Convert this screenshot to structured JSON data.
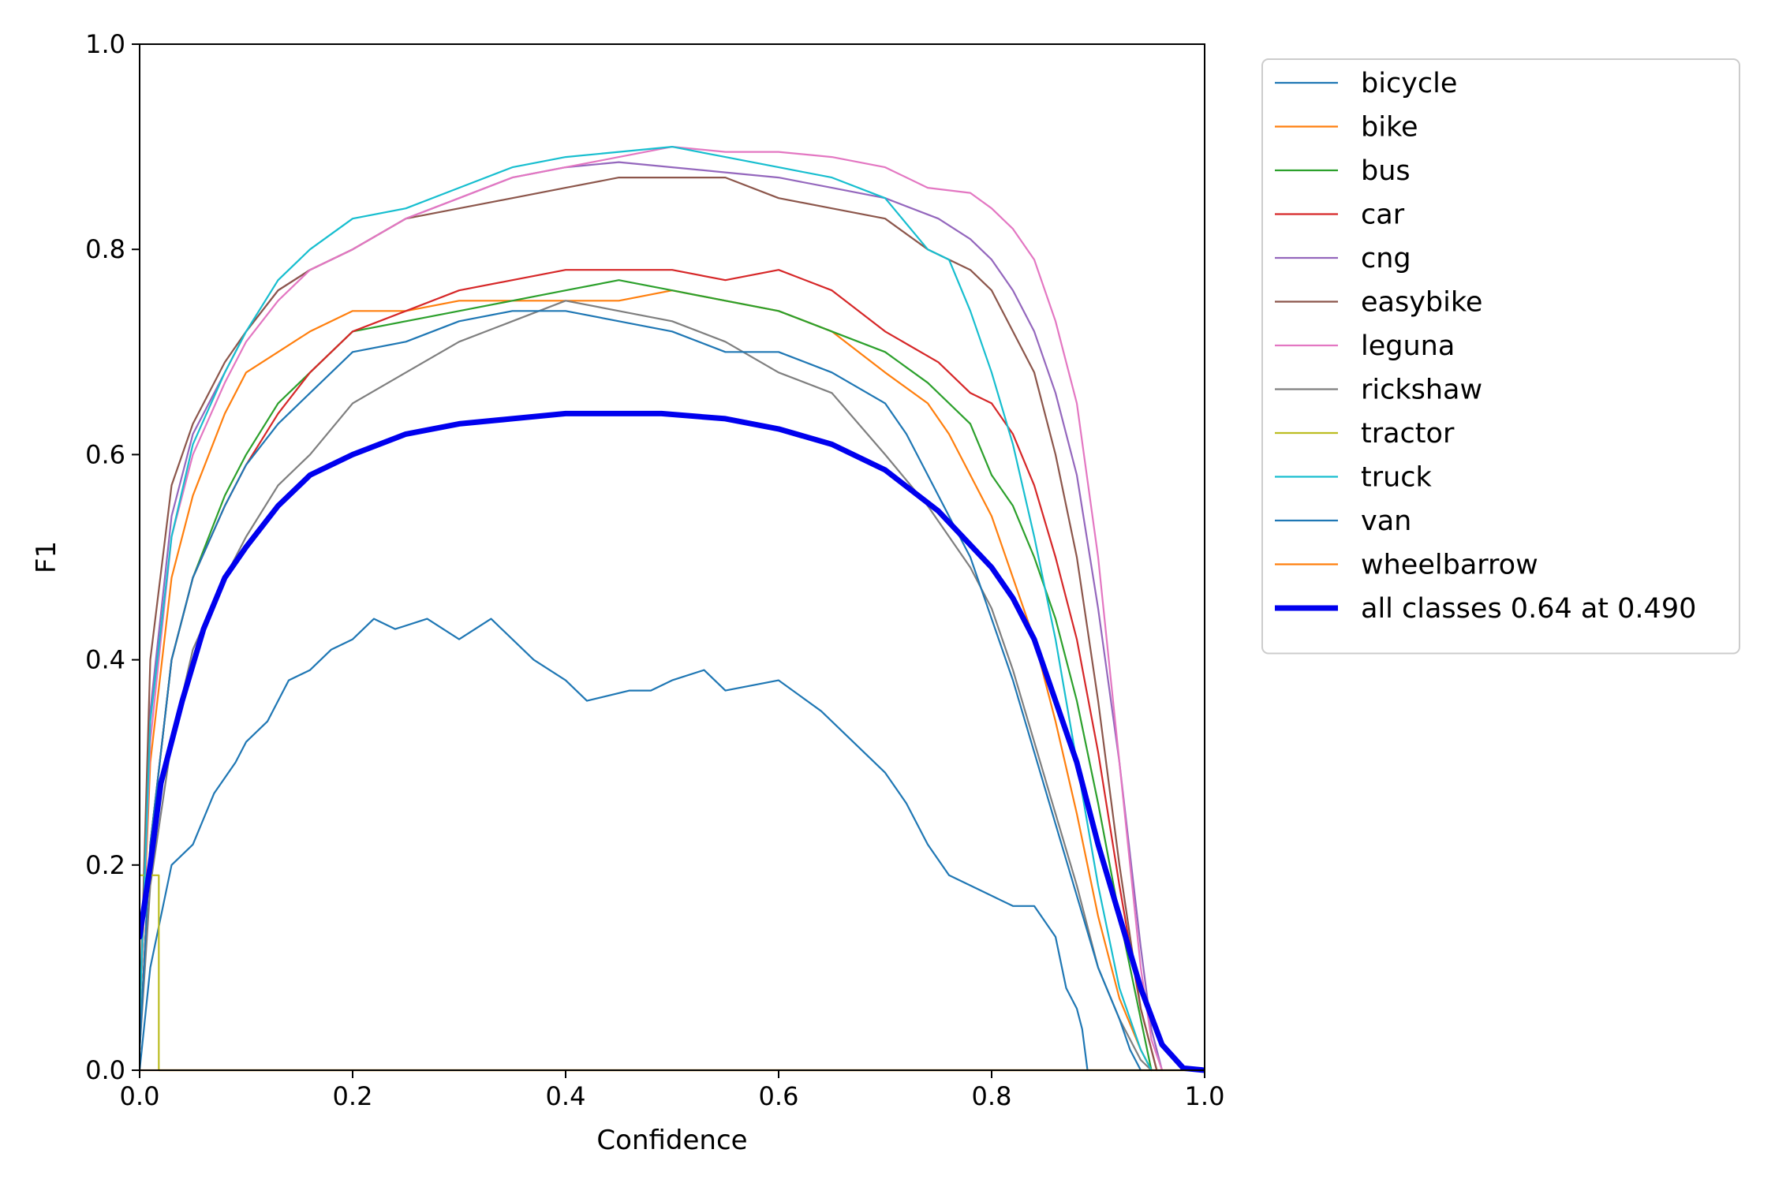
{
  "chart_data": {
    "type": "line",
    "title": "",
    "xlabel": "Confidence",
    "ylabel": "F1",
    "xlim": [
      0.0,
      1.0
    ],
    "ylim": [
      0.0,
      1.0
    ],
    "xticks": [
      "0.0",
      "0.2",
      "0.4",
      "0.6",
      "0.8",
      "1.0"
    ],
    "yticks": [
      "0.0",
      "0.2",
      "0.4",
      "0.6",
      "0.8",
      "1.0"
    ],
    "grid": false,
    "legend_position": "outside-top-right",
    "series": [
      {
        "name": "bicycle",
        "color": "#1f77b4",
        "width": 2.2,
        "x": [
          0.0,
          0.01,
          0.02,
          0.03,
          0.05,
          0.07,
          0.09,
          0.1,
          0.12,
          0.14,
          0.16,
          0.18,
          0.2,
          0.22,
          0.24,
          0.27,
          0.3,
          0.33,
          0.35,
          0.37,
          0.4,
          0.42,
          0.46,
          0.48,
          0.5,
          0.53,
          0.55,
          0.6,
          0.64,
          0.67,
          0.7,
          0.72,
          0.74,
          0.76,
          0.8,
          0.82,
          0.84,
          0.86,
          0.87,
          0.88,
          0.885,
          0.89
        ],
        "y": [
          0.0,
          0.1,
          0.15,
          0.2,
          0.22,
          0.27,
          0.3,
          0.32,
          0.34,
          0.38,
          0.39,
          0.41,
          0.42,
          0.44,
          0.43,
          0.44,
          0.42,
          0.44,
          0.42,
          0.4,
          0.38,
          0.36,
          0.37,
          0.37,
          0.38,
          0.39,
          0.37,
          0.38,
          0.35,
          0.32,
          0.29,
          0.26,
          0.22,
          0.19,
          0.17,
          0.16,
          0.16,
          0.13,
          0.08,
          0.06,
          0.04,
          0.0
        ]
      },
      {
        "name": "bike",
        "color": "#ff7f0e",
        "width": 2.2,
        "x": [
          0.0,
          0.01,
          0.03,
          0.05,
          0.08,
          0.1,
          0.13,
          0.16,
          0.2,
          0.25,
          0.3,
          0.35,
          0.4,
          0.45,
          0.5,
          0.55,
          0.6,
          0.65,
          0.7,
          0.74,
          0.76,
          0.78,
          0.8,
          0.82,
          0.84,
          0.86,
          0.88,
          0.9,
          0.92,
          0.94,
          0.95
        ],
        "y": [
          0.05,
          0.3,
          0.48,
          0.56,
          0.64,
          0.68,
          0.7,
          0.72,
          0.74,
          0.74,
          0.75,
          0.75,
          0.75,
          0.75,
          0.76,
          0.75,
          0.74,
          0.72,
          0.68,
          0.65,
          0.62,
          0.58,
          0.54,
          0.48,
          0.42,
          0.34,
          0.25,
          0.15,
          0.07,
          0.02,
          0.0
        ]
      },
      {
        "name": "bus",
        "color": "#2ca02c",
        "width": 2.2,
        "x": [
          0.0,
          0.01,
          0.03,
          0.05,
          0.08,
          0.1,
          0.13,
          0.16,
          0.2,
          0.25,
          0.3,
          0.35,
          0.4,
          0.45,
          0.5,
          0.55,
          0.6,
          0.65,
          0.7,
          0.74,
          0.78,
          0.8,
          0.82,
          0.84,
          0.86,
          0.88,
          0.9,
          0.92,
          0.94,
          0.95
        ],
        "y": [
          0.02,
          0.22,
          0.4,
          0.48,
          0.56,
          0.6,
          0.65,
          0.68,
          0.72,
          0.73,
          0.74,
          0.75,
          0.76,
          0.77,
          0.76,
          0.75,
          0.74,
          0.72,
          0.7,
          0.67,
          0.63,
          0.58,
          0.55,
          0.5,
          0.44,
          0.36,
          0.26,
          0.15,
          0.05,
          0.0
        ]
      },
      {
        "name": "car",
        "color": "#d62728",
        "width": 2.2,
        "x": [
          0.0,
          0.01,
          0.03,
          0.05,
          0.08,
          0.1,
          0.13,
          0.16,
          0.2,
          0.25,
          0.3,
          0.35,
          0.4,
          0.45,
          0.5,
          0.55,
          0.6,
          0.65,
          0.7,
          0.75,
          0.78,
          0.8,
          0.82,
          0.84,
          0.86,
          0.88,
          0.9,
          0.92,
          0.94,
          0.955
        ],
        "y": [
          0.02,
          0.22,
          0.4,
          0.48,
          0.55,
          0.59,
          0.64,
          0.68,
          0.72,
          0.74,
          0.76,
          0.77,
          0.78,
          0.78,
          0.78,
          0.77,
          0.78,
          0.76,
          0.72,
          0.69,
          0.66,
          0.65,
          0.62,
          0.57,
          0.5,
          0.42,
          0.31,
          0.18,
          0.06,
          0.0
        ]
      },
      {
        "name": "cng",
        "color": "#9467bd",
        "width": 2.2,
        "x": [
          0.0,
          0.01,
          0.03,
          0.05,
          0.08,
          0.1,
          0.13,
          0.16,
          0.2,
          0.25,
          0.3,
          0.35,
          0.4,
          0.45,
          0.5,
          0.55,
          0.6,
          0.65,
          0.7,
          0.75,
          0.78,
          0.8,
          0.82,
          0.84,
          0.86,
          0.88,
          0.9,
          0.92,
          0.94,
          0.95,
          0.96
        ],
        "y": [
          0.05,
          0.35,
          0.54,
          0.62,
          0.68,
          0.72,
          0.76,
          0.78,
          0.8,
          0.83,
          0.85,
          0.87,
          0.88,
          0.885,
          0.88,
          0.875,
          0.87,
          0.86,
          0.85,
          0.83,
          0.81,
          0.79,
          0.76,
          0.72,
          0.66,
          0.58,
          0.45,
          0.3,
          0.12,
          0.04,
          0.0
        ]
      },
      {
        "name": "easybike",
        "color": "#8c564b",
        "width": 2.2,
        "x": [
          0.0,
          0.01,
          0.03,
          0.05,
          0.08,
          0.1,
          0.13,
          0.16,
          0.2,
          0.25,
          0.3,
          0.35,
          0.4,
          0.45,
          0.5,
          0.55,
          0.6,
          0.65,
          0.7,
          0.74,
          0.78,
          0.8,
          0.82,
          0.84,
          0.86,
          0.88,
          0.9,
          0.92,
          0.94,
          0.955
        ],
        "y": [
          0.05,
          0.4,
          0.57,
          0.63,
          0.69,
          0.72,
          0.76,
          0.78,
          0.8,
          0.83,
          0.84,
          0.85,
          0.86,
          0.87,
          0.87,
          0.87,
          0.85,
          0.84,
          0.83,
          0.8,
          0.78,
          0.76,
          0.72,
          0.68,
          0.6,
          0.5,
          0.36,
          0.2,
          0.06,
          0.0
        ]
      },
      {
        "name": "leguna",
        "color": "#e377c2",
        "width": 2.2,
        "x": [
          0.0,
          0.01,
          0.03,
          0.05,
          0.08,
          0.1,
          0.13,
          0.16,
          0.2,
          0.25,
          0.3,
          0.35,
          0.4,
          0.45,
          0.5,
          0.55,
          0.6,
          0.65,
          0.7,
          0.74,
          0.78,
          0.8,
          0.82,
          0.84,
          0.86,
          0.88,
          0.9,
          0.92,
          0.94,
          0.95,
          0.96
        ],
        "y": [
          0.05,
          0.32,
          0.52,
          0.6,
          0.67,
          0.71,
          0.75,
          0.78,
          0.8,
          0.83,
          0.85,
          0.87,
          0.88,
          0.89,
          0.9,
          0.895,
          0.895,
          0.89,
          0.88,
          0.86,
          0.855,
          0.84,
          0.82,
          0.79,
          0.73,
          0.65,
          0.5,
          0.3,
          0.1,
          0.03,
          0.0
        ]
      },
      {
        "name": "rickshaw",
        "color": "#7f7f7f",
        "width": 2.2,
        "x": [
          0.0,
          0.01,
          0.03,
          0.05,
          0.08,
          0.1,
          0.13,
          0.16,
          0.2,
          0.25,
          0.3,
          0.35,
          0.4,
          0.45,
          0.5,
          0.55,
          0.6,
          0.65,
          0.7,
          0.74,
          0.78,
          0.8,
          0.82,
          0.84,
          0.86,
          0.88,
          0.9,
          0.92,
          0.94,
          0.95
        ],
        "y": [
          0.02,
          0.18,
          0.32,
          0.41,
          0.48,
          0.52,
          0.57,
          0.6,
          0.65,
          0.68,
          0.71,
          0.73,
          0.75,
          0.74,
          0.73,
          0.71,
          0.68,
          0.66,
          0.6,
          0.55,
          0.49,
          0.45,
          0.39,
          0.32,
          0.25,
          0.18,
          0.1,
          0.05,
          0.01,
          0.0
        ]
      },
      {
        "name": "tractor",
        "color": "#bcbd22",
        "width": 2.2,
        "x": [
          0.0,
          0.018,
          0.018,
          1.0
        ],
        "y": [
          0.19,
          0.19,
          0.0,
          0.0
        ]
      },
      {
        "name": "truck",
        "color": "#17becf",
        "width": 2.2,
        "x": [
          0.0,
          0.01,
          0.03,
          0.05,
          0.08,
          0.1,
          0.13,
          0.16,
          0.2,
          0.25,
          0.3,
          0.35,
          0.4,
          0.45,
          0.5,
          0.55,
          0.6,
          0.65,
          0.7,
          0.74,
          0.76,
          0.78,
          0.8,
          0.82,
          0.84,
          0.86,
          0.88,
          0.9,
          0.92,
          0.94,
          0.95
        ],
        "y": [
          0.05,
          0.34,
          0.52,
          0.61,
          0.68,
          0.72,
          0.77,
          0.8,
          0.83,
          0.84,
          0.86,
          0.88,
          0.89,
          0.895,
          0.9,
          0.89,
          0.88,
          0.87,
          0.85,
          0.8,
          0.79,
          0.74,
          0.68,
          0.61,
          0.52,
          0.42,
          0.3,
          0.18,
          0.08,
          0.02,
          0.0
        ]
      },
      {
        "name": "van",
        "color": "#1f77b4",
        "width": 2.2,
        "x": [
          0.0,
          0.01,
          0.03,
          0.05,
          0.08,
          0.1,
          0.13,
          0.16,
          0.2,
          0.25,
          0.3,
          0.35,
          0.4,
          0.45,
          0.5,
          0.55,
          0.6,
          0.65,
          0.7,
          0.72,
          0.74,
          0.76,
          0.78,
          0.8,
          0.82,
          0.84,
          0.86,
          0.88,
          0.9,
          0.92,
          0.93,
          0.94
        ],
        "y": [
          0.02,
          0.22,
          0.4,
          0.48,
          0.55,
          0.59,
          0.63,
          0.66,
          0.7,
          0.71,
          0.73,
          0.74,
          0.74,
          0.73,
          0.72,
          0.7,
          0.7,
          0.68,
          0.65,
          0.62,
          0.58,
          0.54,
          0.5,
          0.44,
          0.38,
          0.31,
          0.24,
          0.17,
          0.1,
          0.05,
          0.02,
          0.0
        ]
      },
      {
        "name": "wheelbarrow",
        "color": "#ff7f0e",
        "width": 2.2,
        "x": [
          0.0,
          1.0
        ],
        "y": [
          0.0,
          0.0
        ]
      },
      {
        "name": "all classes 0.64 at 0.490",
        "color": "#0000ee",
        "width": 7,
        "x": [
          0.0,
          0.01,
          0.02,
          0.04,
          0.06,
          0.08,
          0.1,
          0.13,
          0.16,
          0.2,
          0.25,
          0.3,
          0.35,
          0.4,
          0.45,
          0.49,
          0.55,
          0.6,
          0.65,
          0.7,
          0.75,
          0.8,
          0.82,
          0.84,
          0.86,
          0.88,
          0.9,
          0.92,
          0.94,
          0.96,
          0.98,
          1.0
        ],
        "y": [
          0.13,
          0.2,
          0.28,
          0.36,
          0.43,
          0.48,
          0.51,
          0.55,
          0.58,
          0.6,
          0.62,
          0.63,
          0.635,
          0.64,
          0.64,
          0.64,
          0.635,
          0.625,
          0.61,
          0.585,
          0.545,
          0.49,
          0.46,
          0.42,
          0.36,
          0.3,
          0.22,
          0.15,
          0.08,
          0.025,
          0.002,
          0.0
        ]
      }
    ]
  }
}
